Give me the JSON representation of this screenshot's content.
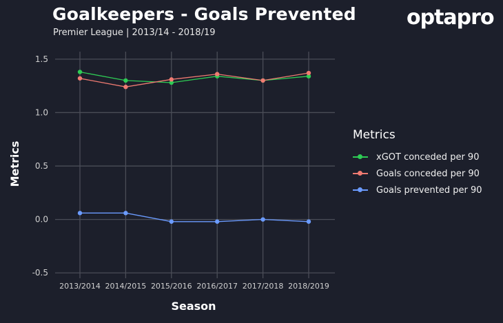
{
  "title": "Goalkeepers - Goals Prevented",
  "subtitle": "Premier League  |  2013/14 - 2018/19",
  "brand": "optapro",
  "chart_data": {
    "type": "line",
    "x": [
      "2013/2014",
      "2014/2015",
      "2015/2016",
      "2016/2017",
      "2017/2018",
      "2018/2019"
    ],
    "xlabel": "Season",
    "ylabel": "Metrics",
    "ylim": [
      -0.55,
      1.57
    ],
    "yticks": [
      -0.5,
      0.0,
      0.5,
      1.0,
      1.5
    ],
    "ytick_labels": [
      "-0.5",
      "0.0",
      "0.5",
      "1.0",
      "1.5"
    ],
    "grid": true,
    "legend": {
      "title": "Metrics",
      "placement": "right"
    },
    "series": [
      {
        "name": "xGOT conceded per 90",
        "color": "#2ecc55",
        "values": [
          1.38,
          1.3,
          1.28,
          1.34,
          1.3,
          1.34
        ]
      },
      {
        "name": "Goals conceded per 90",
        "color": "#f07b72",
        "values": [
          1.32,
          1.24,
          1.31,
          1.36,
          1.3,
          1.37
        ]
      },
      {
        "name": "Goals prevented per 90",
        "color": "#6b9bff",
        "values": [
          0.06,
          0.06,
          -0.02,
          -0.02,
          0.0,
          -0.02
        ]
      }
    ]
  }
}
